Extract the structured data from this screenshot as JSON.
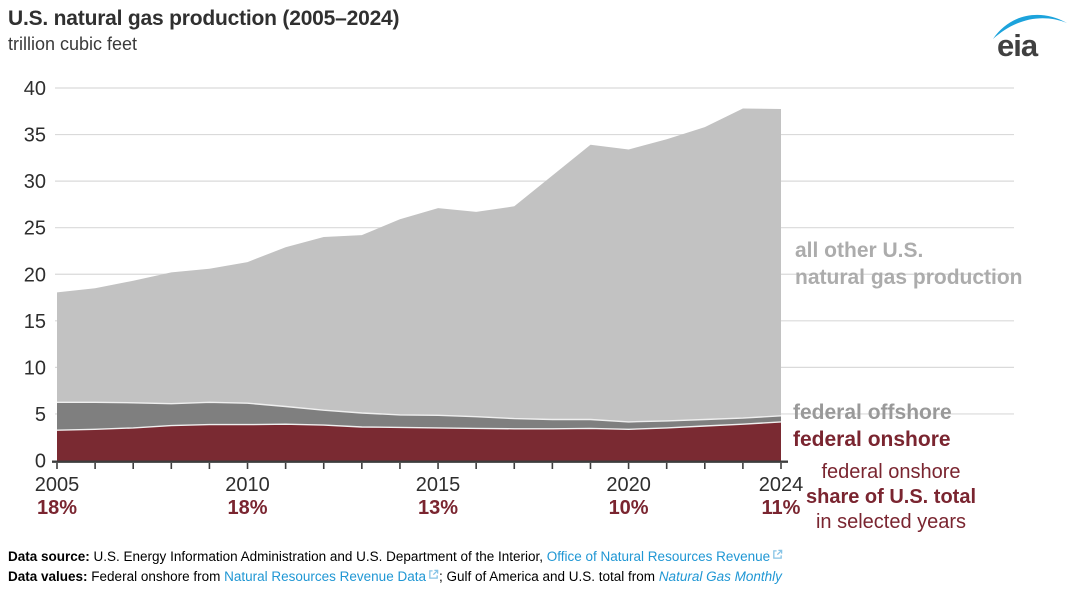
{
  "chart_data": {
    "type": "area",
    "stacked": true,
    "title": "U.S. natural gas production (2005–2024)",
    "subtitle": "trillion cubic feet",
    "ylabel": "trillion cubic feet",
    "ylim": [
      0,
      40
    ],
    "yticks": [
      0,
      5,
      10,
      15,
      20,
      25,
      30,
      35,
      40
    ],
    "grid": "horizontal",
    "legend_position": "right-outside",
    "x": [
      2005,
      2006,
      2007,
      2008,
      2009,
      2010,
      2011,
      2012,
      2013,
      2014,
      2015,
      2016,
      2017,
      2018,
      2019,
      2020,
      2021,
      2022,
      2023,
      2024
    ],
    "series": [
      {
        "name": "federal onshore",
        "color": "#7A2A32",
        "values": [
          3.25,
          3.35,
          3.5,
          3.75,
          3.85,
          3.85,
          3.9,
          3.8,
          3.6,
          3.55,
          3.5,
          3.45,
          3.4,
          3.4,
          3.45,
          3.35,
          3.5,
          3.7,
          3.9,
          4.15
        ]
      },
      {
        "name": "federal offshore",
        "color": "#7F7F7F",
        "values": [
          3.0,
          2.9,
          2.7,
          2.35,
          2.4,
          2.3,
          1.9,
          1.6,
          1.5,
          1.35,
          1.35,
          1.25,
          1.1,
          1.0,
          0.95,
          0.8,
          0.75,
          0.7,
          0.65,
          0.65
        ]
      },
      {
        "name": "all other U.S. natural gas production",
        "color": "#C2C2C2",
        "values": [
          11.8,
          12.25,
          13.1,
          14.1,
          14.35,
          15.15,
          17.1,
          18.6,
          19.1,
          21.0,
          22.25,
          22.0,
          22.8,
          26.2,
          29.5,
          29.25,
          30.25,
          31.4,
          33.25,
          32.95
        ]
      }
    ],
    "us_total": [
      18.05,
      18.5,
      19.3,
      20.2,
      20.6,
      21.3,
      22.9,
      24.0,
      24.2,
      25.9,
      27.1,
      26.7,
      27.3,
      30.6,
      33.9,
      33.4,
      34.5,
      35.8,
      37.8,
      37.75
    ],
    "selected_years": [
      {
        "year": 2005,
        "share": "18%"
      },
      {
        "year": 2010,
        "share": "18%"
      },
      {
        "year": 2015,
        "share": "13%"
      },
      {
        "year": 2020,
        "share": "10%"
      },
      {
        "year": 2024,
        "share": "11%"
      }
    ]
  },
  "logo": {
    "text": "eia"
  },
  "labels": {
    "all_other_line1": "all other U.S.",
    "all_other_line2": "natural gas production",
    "federal_offshore": "federal offshore",
    "federal_onshore": "federal onshore",
    "annotation_line1": "federal onshore",
    "annotation_line2": "share of U.S. total",
    "annotation_line3": "in selected years"
  },
  "footer": {
    "source_label": "Data source:",
    "source_text": " U.S. Energy Information Administration and U.S. Department of the Interior, ",
    "source_link": "Office of Natural Resources Revenue",
    "values_label": "Data values:",
    "values_text1": " Federal onshore from ",
    "values_link1": "Natural Resources Revenue Data",
    "values_text2": "; Gulf of America and U.S. total from ",
    "values_link2": "Natural Gas Monthly"
  },
  "colors": {
    "federal_onshore_fill": "#7A2A32",
    "federal_offshore_fill": "#7F7F7F",
    "all_other_fill": "#C2C2C2",
    "maroon_text": "#7A2530",
    "offshore_label_text": "#999999",
    "all_other_label_text": "#ACACAC",
    "gridline": "#DADADA",
    "axis": "#3d3d3d",
    "link_blue": "#2097D4",
    "logo_blue": "#1CA3DC",
    "separator_stroke": "#EFEFEF"
  }
}
